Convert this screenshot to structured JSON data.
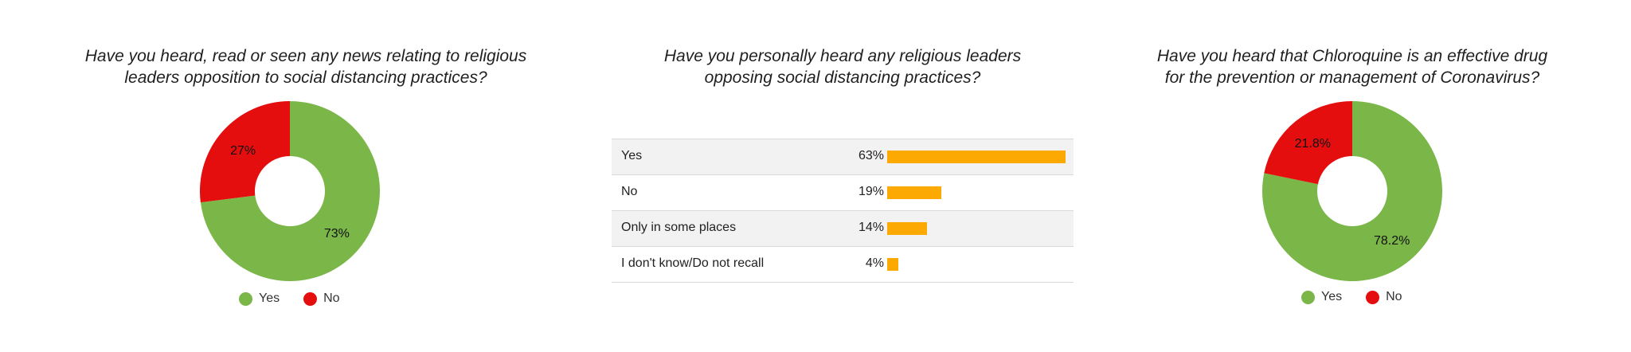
{
  "colors": {
    "yes": "#7ab648",
    "no": "#e40e0f",
    "bar": "#fca903"
  },
  "chart_data": [
    {
      "type": "pie",
      "variant": "donut",
      "title_lines": [
        "Have you heard, read or seen any news relating to religious",
        "leaders opposition to social distancing practices?"
      ],
      "categories": [
        "Yes",
        "No"
      ],
      "values": [
        73,
        27
      ],
      "labels": [
        "73%",
        "27%"
      ],
      "legend": [
        "Yes",
        "No"
      ],
      "legend_position": "bottom"
    },
    {
      "type": "bar",
      "orientation": "horizontal",
      "title_lines": [
        "Have you personally heard any religious leaders",
        "opposing social distancing practices?"
      ],
      "categories": [
        "Yes",
        "No",
        "Only in some places",
        "I don't know/Do not recall"
      ],
      "values": [
        63,
        19,
        14,
        4
      ],
      "labels": [
        "63%",
        "19%",
        "14%",
        "4%"
      ],
      "xlim": [
        0,
        63
      ]
    },
    {
      "type": "pie",
      "variant": "donut",
      "title_lines": [
        "Have you heard that Chloroquine is an effective drug",
        "for the prevention or management of Coronavirus?"
      ],
      "categories": [
        "Yes",
        "No"
      ],
      "values": [
        78.2,
        21.8
      ],
      "labels": [
        "78.2%",
        "21.8%"
      ],
      "legend": [
        "Yes",
        "No"
      ],
      "legend_position": "bottom"
    }
  ]
}
